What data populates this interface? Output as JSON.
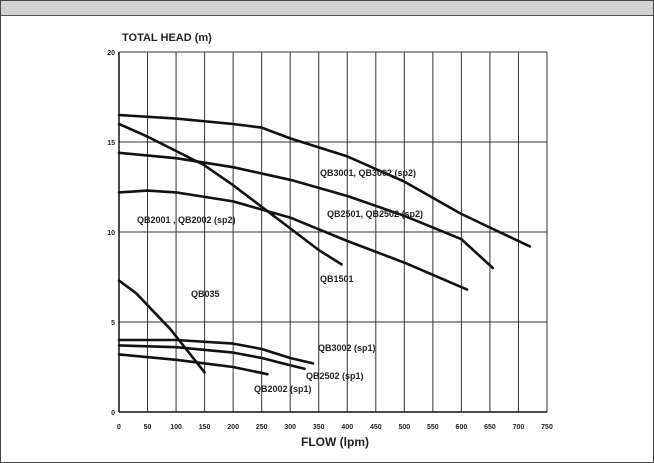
{
  "chart_data": {
    "type": "line",
    "title": "TOTAL HEAD (m)",
    "xlabel": "FLOW (lpm)",
    "ylabel": "TOTAL HEAD (m)",
    "xlim": [
      0,
      750
    ],
    "ylim": [
      0,
      20
    ],
    "x_ticks": [
      0,
      50,
      100,
      150,
      200,
      250,
      300,
      350,
      400,
      450,
      500,
      550,
      600,
      650,
      700,
      750
    ],
    "y_ticks": [
      0,
      5,
      10,
      15,
      20
    ],
    "grid": true,
    "series": [
      {
        "name": "QB3001, QB3002 (sp2)",
        "points": [
          [
            0,
            16.5
          ],
          [
            100,
            16.3
          ],
          [
            200,
            16.0
          ],
          [
            250,
            15.8
          ],
          [
            300,
            15.2
          ],
          [
            400,
            14.2
          ],
          [
            500,
            12.8
          ],
          [
            600,
            11.0
          ],
          [
            720,
            9.2
          ]
        ]
      },
      {
        "name": "QB2501, QB2502 (sp2)",
        "points": [
          [
            0,
            14.4
          ],
          [
            100,
            14.1
          ],
          [
            200,
            13.6
          ],
          [
            300,
            12.9
          ],
          [
            400,
            12.0
          ],
          [
            500,
            10.9
          ],
          [
            600,
            9.6
          ],
          [
            655,
            8.0
          ]
        ]
      },
      {
        "name": "QB2001 , QB2002 (sp2)",
        "points": [
          [
            0,
            12.2
          ],
          [
            50,
            12.3
          ],
          [
            100,
            12.2
          ],
          [
            200,
            11.7
          ],
          [
            300,
            10.8
          ],
          [
            400,
            9.5
          ],
          [
            500,
            8.3
          ],
          [
            610,
            6.8
          ]
        ]
      },
      {
        "name": "QB1501",
        "points": [
          [
            0,
            16.0
          ],
          [
            50,
            15.3
          ],
          [
            100,
            14.5
          ],
          [
            150,
            13.7
          ],
          [
            200,
            12.6
          ],
          [
            250,
            11.4
          ],
          [
            300,
            10.2
          ],
          [
            350,
            9.0
          ],
          [
            390,
            8.2
          ]
        ]
      },
      {
        "name": "QB035",
        "points": [
          [
            0,
            7.3
          ],
          [
            30,
            6.6
          ],
          [
            60,
            5.6
          ],
          [
            90,
            4.6
          ],
          [
            120,
            3.4
          ],
          [
            150,
            2.2
          ]
        ]
      },
      {
        "name": "QB3002 (sp1)",
        "points": [
          [
            0,
            4.0
          ],
          [
            100,
            4.0
          ],
          [
            200,
            3.8
          ],
          [
            250,
            3.5
          ],
          [
            300,
            3.0
          ],
          [
            340,
            2.7
          ]
        ]
      },
      {
        "name": "QB2502 (sp1)",
        "points": [
          [
            0,
            3.7
          ],
          [
            100,
            3.6
          ],
          [
            200,
            3.3
          ],
          [
            250,
            3.0
          ],
          [
            300,
            2.6
          ],
          [
            325,
            2.4
          ]
        ]
      },
      {
        "name": "QB2002 (sp1)",
        "points": [
          [
            0,
            3.2
          ],
          [
            100,
            2.9
          ],
          [
            150,
            2.7
          ],
          [
            200,
            2.5
          ],
          [
            230,
            2.3
          ],
          [
            260,
            2.1
          ]
        ]
      }
    ],
    "annotations": [
      {
        "text": "QB3001, QB3002 (sp2)",
        "series": 0
      },
      {
        "text": "QB2501, QB2502 (sp2)",
        "series": 1
      },
      {
        "text": "QB2001 , QB2002 (sp2)",
        "series": 2
      },
      {
        "text": "QB1501",
        "series": 3
      },
      {
        "text": "QB035",
        "series": 4
      },
      {
        "text": "QB3002 (sp1)",
        "series": 5
      },
      {
        "text": "QB2502 (sp1)",
        "series": 6
      },
      {
        "text": "QB2002 (sp1)",
        "series": 7
      }
    ]
  }
}
